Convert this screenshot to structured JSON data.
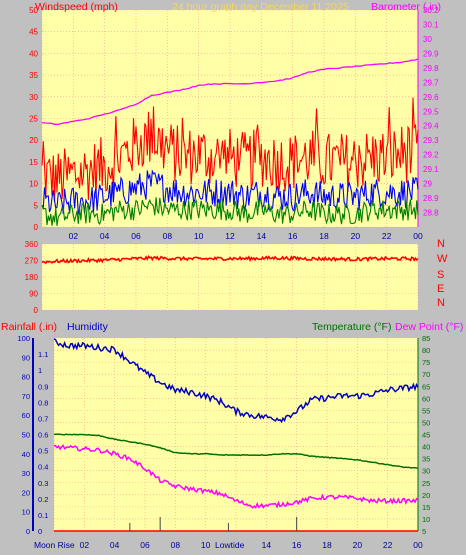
{
  "header": {
    "left": "Windspeed (mph)",
    "center": "24 hour graph day   December 11 2025",
    "right": "Barometer (.in)"
  },
  "colors": {
    "background": "#c0c0c0",
    "plot": "#ffffa8",
    "grid": "#ff9999",
    "wind_gust": "#ff0000",
    "wind_avg": "#0000ff",
    "wind_low": "#008000",
    "barometer": "#ff00ff",
    "humidity": "#0000c0",
    "temperature": "#007000",
    "dewpoint": "#ff00ff",
    "rain": "#ff0000"
  },
  "x_ticks": [
    "02",
    "04",
    "06",
    "08",
    "10",
    "12",
    "14",
    "16",
    "18",
    "20",
    "22",
    "00"
  ],
  "compass": [
    "N",
    "W",
    "S",
    "E",
    "N"
  ],
  "labels3": {
    "rain": "Rainfall (.in)",
    "humidity": "Humidity",
    "temperature": "Temperature (°F)",
    "dewpoint": "Dew Point (°F)",
    "moonrise": "Moon Rise",
    "lowtide": "Lowtide"
  },
  "chart_data": [
    {
      "type": "line",
      "title": "24 hour graph day   December 11 2025",
      "ylabel": "Windspeed (mph)",
      "y2label": "Barometer (.in)",
      "ylim": [
        0,
        50
      ],
      "y2lim": [
        28.7,
        30.2
      ],
      "yticks": [
        0,
        5,
        10,
        15,
        20,
        25,
        30,
        35,
        40,
        45,
        50
      ],
      "y2ticks": [
        "28.8",
        "28.9",
        "29",
        "29.1",
        "29.2",
        "29.3",
        "29.4",
        "29.5",
        "29.6",
        "29.7",
        "29.8",
        "29.9",
        "30",
        "30.1",
        "30.2"
      ],
      "x_hours": [
        0,
        1,
        2,
        3,
        4,
        5,
        6,
        7,
        8,
        9,
        10,
        11,
        12,
        13,
        14,
        15,
        16,
        17,
        18,
        19,
        20,
        21,
        22,
        23,
        24
      ],
      "series": [
        {
          "values": [
            12,
            11,
            12,
            13,
            14,
            16,
            19,
            21,
            18,
            16,
            17,
            16,
            16,
            15,
            16,
            15,
            15,
            16,
            15,
            15,
            15,
            16,
            16,
            17,
            17
          ]
        },
        {
          "values": [
            6,
            5,
            6,
            6,
            7,
            8,
            9,
            10,
            9,
            8,
            8,
            8,
            8,
            7,
            8,
            7,
            7,
            8,
            7,
            7,
            7,
            8,
            8,
            8,
            8
          ]
        },
        {
          "values": [
            3,
            2,
            3,
            3,
            3,
            4,
            4,
            5,
            4,
            4,
            4,
            4,
            4,
            3,
            4,
            3,
            3,
            4,
            3,
            3,
            3,
            4,
            4,
            4,
            4
          ]
        },
        {
          "values": [
            29.42,
            29.41,
            29.43,
            29.45,
            29.48,
            29.51,
            29.55,
            29.61,
            29.63,
            29.65,
            29.68,
            29.69,
            29.69,
            29.69,
            29.7,
            29.71,
            29.73,
            29.77,
            29.79,
            29.8,
            29.81,
            29.82,
            29.83,
            29.84,
            29.86
          ]
        }
      ]
    },
    {
      "type": "line",
      "ylim": [
        0,
        360
      ],
      "yticks": [
        0,
        90,
        180,
        270,
        360
      ],
      "x_hours": [
        0,
        1,
        2,
        3,
        4,
        5,
        6,
        7,
        8,
        9,
        10,
        11,
        12,
        13,
        14,
        15,
        16,
        17,
        18,
        19,
        20,
        21,
        22,
        23,
        24
      ],
      "series": [
        {
          "values": [
            262,
            266,
            268,
            270,
            272,
            276,
            280,
            284,
            282,
            280,
            279,
            280,
            281,
            280,
            282,
            284,
            282,
            280,
            279,
            278,
            277,
            279,
            280,
            280,
            279
          ]
        }
      ]
    },
    {
      "type": "line",
      "ylabel": "Rainfall (.in)",
      "ylim_rain": [
        0,
        1.2
      ],
      "rain_ticks": [
        "0",
        "0.1",
        "0.2",
        "0.3",
        "0.4",
        "0.5",
        "0.6",
        "0.7",
        "0.8",
        "0.9",
        "1",
        "1.1"
      ],
      "ylim_humidity": [
        0,
        100
      ],
      "humidity_ticks": [
        0,
        10,
        20,
        30,
        40,
        50,
        60,
        70,
        80,
        90,
        100
      ],
      "ylim_temp": [
        5,
        85
      ],
      "temp_ticks": [
        5,
        10,
        15,
        20,
        25,
        30,
        35,
        40,
        45,
        50,
        55,
        60,
        65,
        70,
        75,
        80,
        85
      ],
      "x_hours": [
        0,
        1,
        2,
        3,
        4,
        5,
        6,
        7,
        8,
        9,
        10,
        11,
        12,
        13,
        14,
        15,
        16,
        17,
        18,
        19,
        20,
        21,
        22,
        23,
        24
      ],
      "series": [
        {
          "name": "Humidity",
          "values": [
            98,
            96,
            96,
            95,
            94,
            88,
            82,
            77,
            73,
            72,
            70,
            67,
            62,
            60,
            59,
            58,
            62,
            68,
            69,
            70,
            70,
            71,
            73,
            74,
            75
          ]
        },
        {
          "name": "Temperature (°F)",
          "values": [
            45,
            45,
            45,
            44.5,
            43,
            42,
            41,
            39.5,
            37.5,
            37,
            37,
            36.5,
            36.5,
            36.5,
            36.5,
            37,
            37,
            36,
            35.5,
            35,
            34.5,
            33.5,
            32.5,
            31.5,
            31
          ]
        },
        {
          "name": "Dew Point (°F)",
          "values": [
            40,
            39.5,
            39,
            38.5,
            37,
            35,
            31,
            26,
            23.5,
            22.5,
            21.5,
            20.5,
            17.5,
            15.5,
            15.5,
            16,
            17,
            18.5,
            19,
            19,
            18.5,
            17.5,
            17.5,
            17.5,
            17.5
          ]
        },
        {
          "name": "Rainfall (.in)",
          "values": [
            0,
            0,
            0,
            0,
            0,
            0,
            0,
            0,
            0,
            0,
            0,
            0,
            0,
            0,
            0,
            0,
            0,
            0,
            0,
            0,
            0,
            0,
            0,
            0,
            0
          ]
        }
      ],
      "event_hours": [
        5,
        7,
        11.5,
        16
      ]
    }
  ]
}
